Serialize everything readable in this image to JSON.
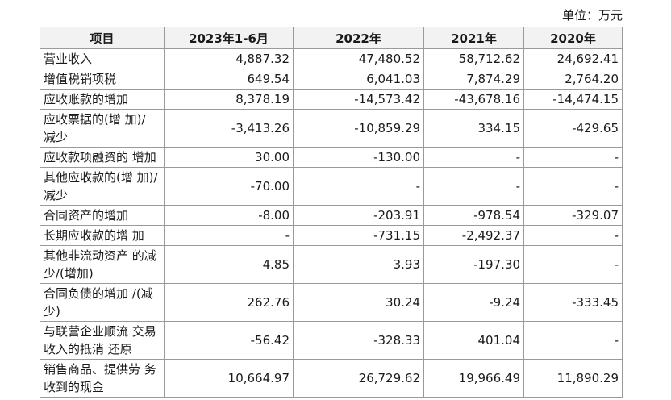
{
  "unit": "单位：万元",
  "table": {
    "headers": [
      "项目",
      "2023年1-6月",
      "2022年",
      "2021年",
      "2020年"
    ],
    "rows": [
      [
        "营业收入",
        "4,887.32",
        "47,480.52",
        "58,712.62",
        "24,692.41"
      ],
      [
        "增值税销项税",
        "649.54",
        "6,041.03",
        "7,874.29",
        "2,764.20"
      ],
      [
        "应收账款的增加",
        "8,378.19",
        "-14,573.42",
        "-43,678.16",
        "-14,474.15"
      ],
      [
        "应收票据的(增 加)/ 减少",
        "-3,413.26",
        "-10,859.29",
        "334.15",
        "-429.65"
      ],
      [
        "应收款项融资的 增加",
        "30.00",
        "-130.00",
        "-",
        "-"
      ],
      [
        "其他应收款的(增 加)/减少",
        "-70.00",
        "-",
        "-",
        "-"
      ],
      [
        "合同资产的增加",
        "-8.00",
        "-203.91",
        "-978.54",
        "-329.07"
      ],
      [
        "长期应收款的增 加",
        "-",
        "-731.15",
        "-2,492.37",
        "-"
      ],
      [
        "其他非流动资产 的减少/(增加)",
        "4.85",
        "3.93",
        "-197.30",
        "-"
      ],
      [
        "合同负债的增加 /(减少)",
        "262.76",
        "30.24",
        "-9.24",
        "-333.45"
      ],
      [
        "与联营企业顺流 交易收入的抵消 还原",
        "-56.42",
        "-328.33",
        "401.04",
        "-"
      ],
      [
        "销售商品、提供劳 务收到的现金",
        "10,664.97",
        "26,729.62",
        "19,966.49",
        "11,890.29"
      ]
    ]
  }
}
